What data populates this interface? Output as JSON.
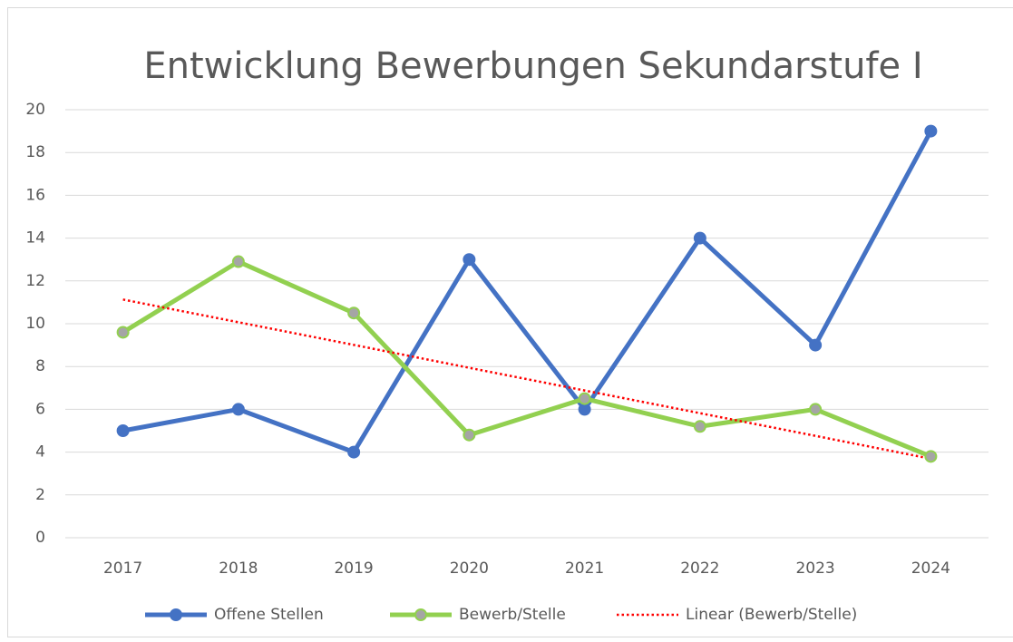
{
  "chart_data": {
    "type": "line",
    "title": "Entwicklung Bewerbungen Sekundarstufe I",
    "categories": [
      "2017",
      "2018",
      "2019",
      "2020",
      "2021",
      "2022",
      "2023",
      "2024"
    ],
    "series": [
      {
        "name": "Offene Stellen",
        "color": "#4472c4",
        "marker": true,
        "marker_color": "#4472c4",
        "dash": "solid",
        "values": [
          5,
          6,
          4,
          13,
          6,
          14,
          9,
          19
        ]
      },
      {
        "name": "Bewerb/Stelle",
        "color": "#92d050",
        "marker": true,
        "marker_color": "#a5a5a5",
        "dash": "solid",
        "values": [
          9.6,
          12.9,
          10.5,
          4.8,
          6.5,
          5.2,
          6.0,
          3.8
        ]
      },
      {
        "name": "Linear (Bewerb/Stelle)",
        "color": "#ff0000",
        "marker": false,
        "dash": "dotted",
        "values": [
          11.13,
          10.07,
          9.01,
          7.94,
          6.88,
          5.82,
          4.76,
          3.69
        ]
      }
    ],
    "ylim": [
      0,
      20
    ],
    "yticks": [
      0,
      2,
      4,
      6,
      8,
      10,
      12,
      14,
      16,
      18,
      20
    ],
    "grid": true,
    "legend": "bottom"
  }
}
